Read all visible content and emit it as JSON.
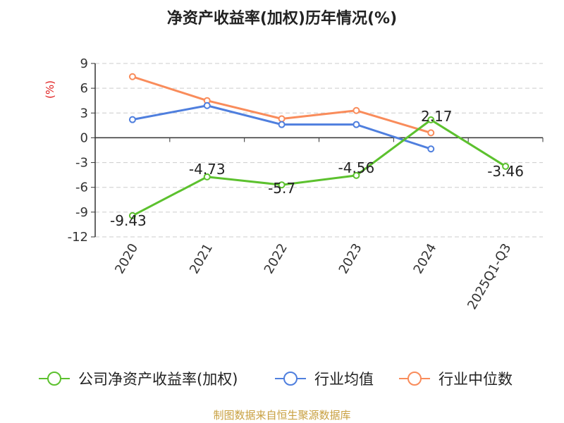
{
  "chart_data": {
    "type": "line",
    "title": "净资产收益率(加权)历年情况(%)",
    "ylabel": "(%)",
    "categories": [
      "2020",
      "2021",
      "2022",
      "2023",
      "2024",
      "2025Q1-Q3"
    ],
    "yticks": [
      9,
      6,
      3,
      0,
      -3,
      -6,
      -9,
      -12
    ],
    "ylim": [
      -12,
      9
    ],
    "grid": true,
    "legend_position": "bottom",
    "series": [
      {
        "name": "公司净资产收益率(加权)",
        "color": "#5cc12e",
        "values": [
          -9.43,
          -4.73,
          -5.7,
          -4.56,
          2.17,
          -3.46
        ],
        "labels": [
          "-9.43",
          "-4.73",
          "-5.7",
          "-4.56",
          "2.17",
          "-3.46"
        ]
      },
      {
        "name": "行业均值",
        "color": "#4f7fde",
        "values": [
          2.2,
          3.9,
          1.6,
          1.6,
          -1.35,
          null
        ]
      },
      {
        "name": "行业中位数",
        "color": "#f98c5b",
        "values": [
          7.4,
          4.5,
          2.3,
          3.3,
          0.6,
          null
        ]
      }
    ]
  },
  "source_text": "制图数据来自恒生聚源数据库",
  "colors": {
    "title": "#222222",
    "axis_text": "#333333",
    "ylabel": "#e02020",
    "grid": "#cccccc",
    "source": "#c8a040"
  }
}
